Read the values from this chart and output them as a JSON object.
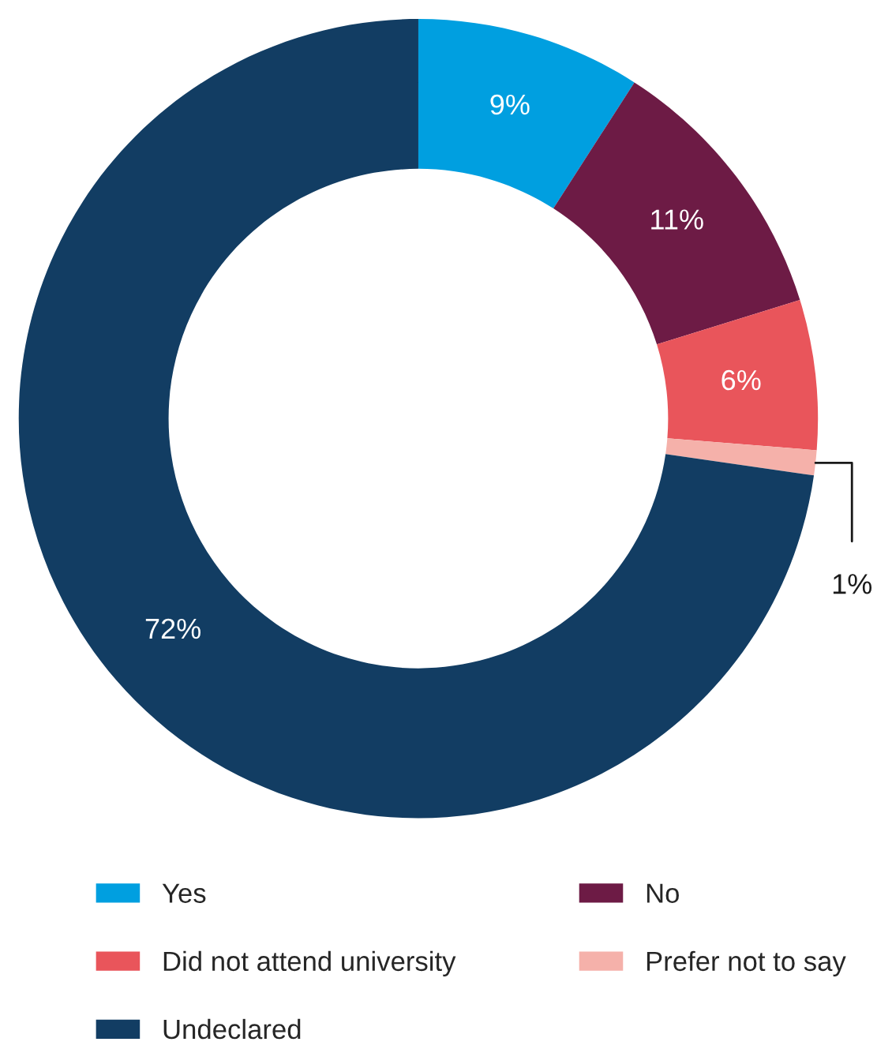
{
  "chart_data": {
    "type": "donut",
    "categories": [
      "Yes",
      "No",
      "Did not attend university",
      "Prefer not to say",
      "Undeclared"
    ],
    "values": [
      9,
      11,
      6,
      1,
      72
    ],
    "colors": [
      "#009fe0",
      "#6d1b45",
      "#e9555b",
      "#f5b1aa",
      "#123d63"
    ],
    "value_labels": [
      "9%",
      "11%",
      "6%",
      "1%",
      "72%"
    ],
    "legend": "bottom"
  }
}
